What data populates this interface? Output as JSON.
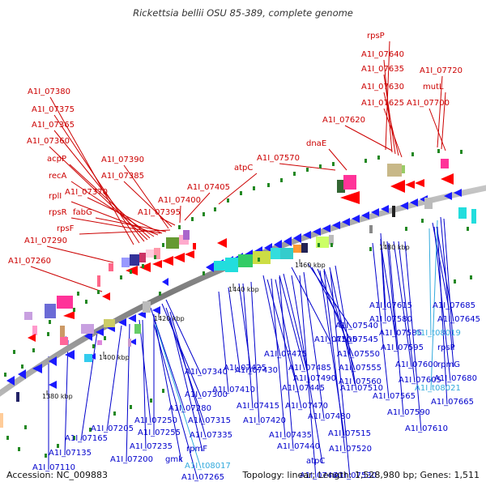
{
  "title": "Rickettsia bellii OSU 85-389, complete genome",
  "footer": {
    "accession": "Accession: NC_009883",
    "summary": "Topology: linear; Length: 1,528,980 bp; Genes: 1,511"
  },
  "colors": {
    "forward_label": "#cc0000",
    "reverse_label": "#0000cc",
    "rna_label": "#33aadd",
    "backbone": "#8c8c8c",
    "forward_arrow": "#ff0000",
    "reverse_arrow": "#1a1aff"
  },
  "ticks": [
    {
      "label": "1380 kbp"
    },
    {
      "label": "1400 kbp"
    },
    {
      "label": "1420 kbp"
    },
    {
      "label": "1440 kbp"
    },
    {
      "label": "1460 kbp"
    },
    {
      "label": "1480 kbp"
    }
  ],
  "top_labels": [
    {
      "text": "rpsP"
    },
    {
      "text": "A1I_07640"
    },
    {
      "text": "A1I_07635"
    },
    {
      "text": "A1I_07720"
    },
    {
      "text": "A1I_07630"
    },
    {
      "text": "mutL"
    },
    {
      "text": "A1I_07625"
    },
    {
      "text": "A1I_07700"
    },
    {
      "text": "A1I_07620"
    },
    {
      "text": "A1I_07380"
    },
    {
      "text": "A1I_07375"
    },
    {
      "text": "A1I_07365"
    },
    {
      "text": "A1I_07360"
    },
    {
      "text": "dnaE"
    },
    {
      "text": "acpP"
    },
    {
      "text": "A1I_07390"
    },
    {
      "text": "A1I_07570"
    },
    {
      "text": "recA"
    },
    {
      "text": "A1I_07385"
    },
    {
      "text": "atpC"
    },
    {
      "text": "rplI"
    },
    {
      "text": "A1I_07370"
    },
    {
      "text": "A1I_07405"
    },
    {
      "text": "A1I_07400"
    },
    {
      "text": "rpsR"
    },
    {
      "text": "fabG"
    },
    {
      "text": "A1I_07395"
    },
    {
      "text": "rpsF"
    },
    {
      "text": "A1I_07290"
    },
    {
      "text": "A1I_07260"
    }
  ],
  "bottom_labels": [
    {
      "text": "A1I_07615"
    },
    {
      "text": "A1I_07685"
    },
    {
      "text": "A1I_07540"
    },
    {
      "text": "A1I_07580"
    },
    {
      "text": "A1I_07645"
    },
    {
      "text": "A1I_07505"
    },
    {
      "text": "A1I_07545"
    },
    {
      "text": "A1I_07585"
    },
    {
      "text": "A1I_t08019",
      "rna": true
    },
    {
      "text": "A1I_07475"
    },
    {
      "text": "A1I_07550"
    },
    {
      "text": "A1I_07595"
    },
    {
      "text": "rpsP"
    },
    {
      "text": "A1I_07425"
    },
    {
      "text": "A1I_07485"
    },
    {
      "text": "A1I_07340"
    },
    {
      "text": "A1I_07430"
    },
    {
      "text": "A1I_07555"
    },
    {
      "text": "A1I_07600"
    },
    {
      "text": "rpmG"
    },
    {
      "text": "A1I_07490"
    },
    {
      "text": "A1I_07560"
    },
    {
      "text": "A1I_07605"
    },
    {
      "text": "A1I_07680"
    },
    {
      "text": "A1I_07410"
    },
    {
      "text": "A1I_07445"
    },
    {
      "text": "A1I_07510"
    },
    {
      "text": "A1I_t08021",
      "rna": true
    },
    {
      "text": "A1I_07300"
    },
    {
      "text": "A1I_07565"
    },
    {
      "text": "A1I_07280"
    },
    {
      "text": "A1I_07415"
    },
    {
      "text": "A1I_07470"
    },
    {
      "text": "A1I_07665"
    },
    {
      "text": "A1I_07590"
    },
    {
      "text": "A1I_07315"
    },
    {
      "text": "A1I_07250"
    },
    {
      "text": "A1I_07420"
    },
    {
      "text": "A1I_07480"
    },
    {
      "text": "A1I_07335"
    },
    {
      "text": "A1I_07610"
    },
    {
      "text": "A1I_07165"
    },
    {
      "text": "A1I_07205"
    },
    {
      "text": "A1I_07255"
    },
    {
      "text": "A1I_07435"
    },
    {
      "text": "A1I_07515"
    },
    {
      "text": "A1I_07235"
    },
    {
      "text": "rpmF"
    },
    {
      "text": "A1I_07135"
    },
    {
      "text": "A1I_07440"
    },
    {
      "text": "A1I_07520"
    },
    {
      "text": "A1I_07200"
    },
    {
      "text": "gmk"
    },
    {
      "text": "atpC"
    },
    {
      "text": "A1I_t08017",
      "rna": true
    },
    {
      "text": "A1I_07110"
    },
    {
      "text": "A1I_07265"
    },
    {
      "text": "A1I_07460"
    },
    {
      "text": "A1I_07530"
    }
  ]
}
